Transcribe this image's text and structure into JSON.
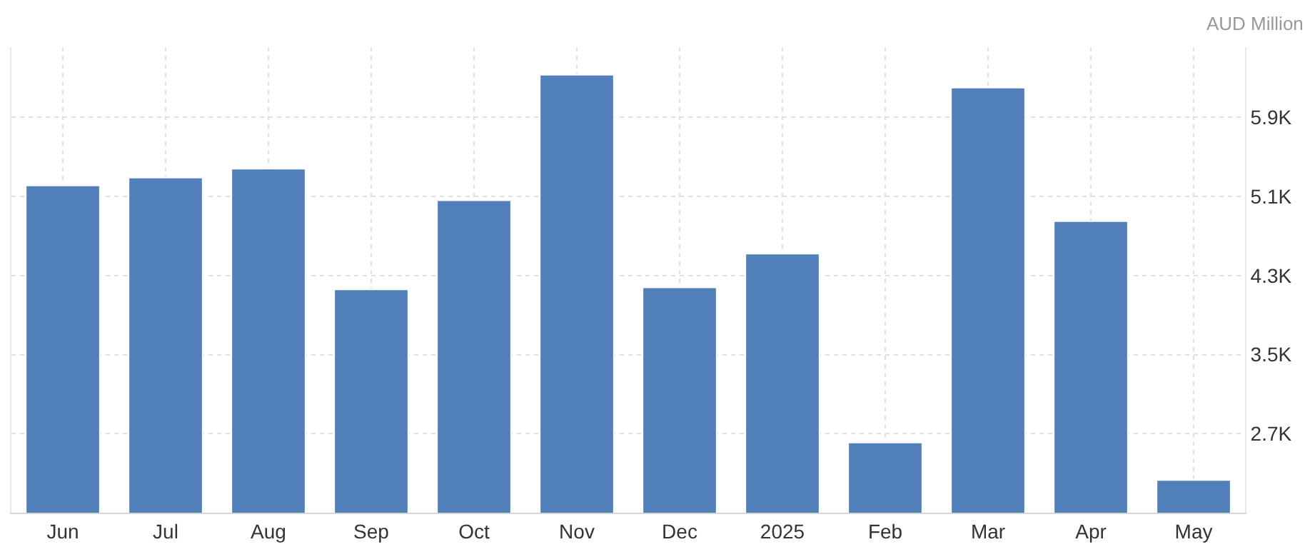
{
  "chart_data": {
    "type": "bar",
    "annotations": [
      "AUD Million"
    ],
    "categories": [
      "Jun",
      "Jul",
      "Aug",
      "Sep",
      "Oct",
      "Nov",
      "Dec",
      "2025",
      "Feb",
      "Mar",
      "Apr",
      "May"
    ],
    "values": [
      5.21,
      5.29,
      5.38,
      4.16,
      5.06,
      6.33,
      4.18,
      4.52,
      2.61,
      6.2,
      4.85,
      2.23
    ],
    "color": "#517fba",
    "ylim": [
      1.9,
      6.61
    ],
    "yticks": [
      {
        "value": 2.7,
        "label": "2.7K"
      },
      {
        "value": 3.5,
        "label": "3.5K"
      },
      {
        "value": 4.3,
        "label": "4.3K"
      },
      {
        "value": 5.1,
        "label": "5.1K"
      },
      {
        "value": 5.9,
        "label": "5.9K"
      }
    ],
    "grid": true
  }
}
